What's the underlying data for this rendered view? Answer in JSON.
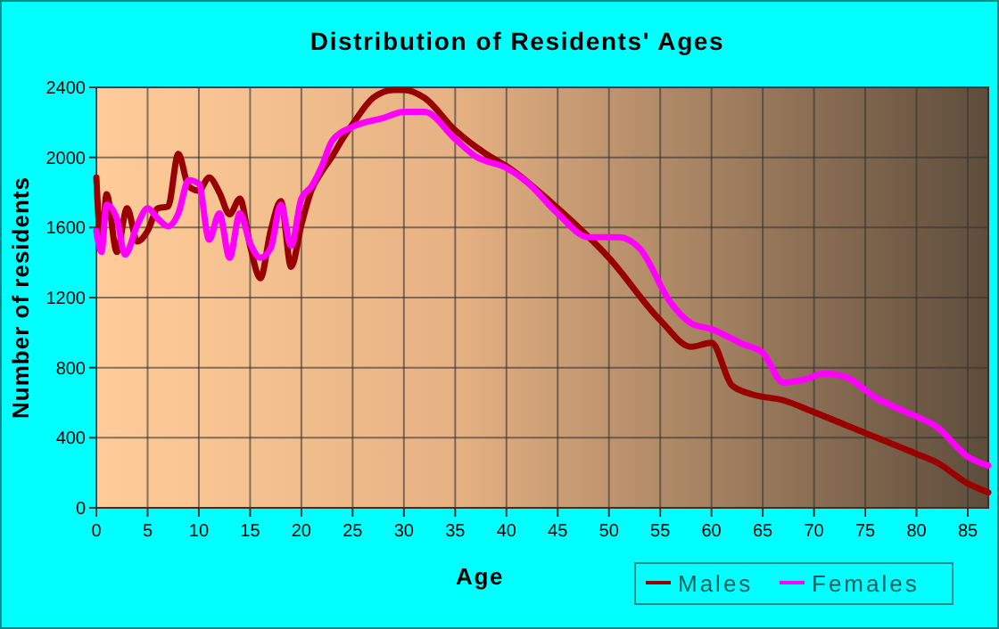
{
  "chart_data": {
    "type": "line",
    "title": "Distribution of Residents' Ages",
    "xlabel": "Age",
    "ylabel": "Number of residents",
    "xlim": [
      0,
      87
    ],
    "xticks": [
      0,
      5,
      10,
      15,
      20,
      25,
      30,
      35,
      40,
      45,
      50,
      55,
      60,
      65,
      70,
      75,
      80,
      85
    ],
    "ylim": [
      0,
      2400
    ],
    "yticks": [
      0,
      400,
      800,
      1200,
      1600,
      2000,
      2400
    ],
    "grid": true,
    "legend": "bottom",
    "marker": "none",
    "line_style": "solid",
    "series": [
      {
        "name": "Males",
        "color": "#990000",
        "x": [
          0,
          0.5,
          1,
          2,
          3,
          4,
          5,
          6,
          7,
          8,
          9,
          10,
          11,
          12,
          13,
          14,
          15,
          16,
          17,
          18,
          19,
          20,
          21,
          22,
          23,
          24,
          25,
          27,
          29,
          30,
          32,
          35,
          38,
          40,
          45,
          50,
          55,
          58,
          60,
          62,
          64,
          67,
          70,
          75,
          80,
          82,
          85,
          87
        ],
        "values": [
          1885,
          1495,
          1790,
          1460,
          1710,
          1520,
          1580,
          1710,
          1720,
          2020,
          1835,
          1810,
          1885,
          1800,
          1675,
          1765,
          1495,
          1310,
          1580,
          1750,
          1375,
          1615,
          1815,
          1920,
          2005,
          2105,
          2190,
          2340,
          2385,
          2385,
          2340,
          2155,
          2020,
          1950,
          1710,
          1427,
          1071,
          919,
          942,
          698,
          647,
          614,
          546,
          427,
          308,
          258,
          139,
          88
        ]
      },
      {
        "name": "Females",
        "color": "#ff00ff",
        "x": [
          0,
          0.5,
          1,
          2,
          2.8,
          4,
          5,
          6,
          7,
          8,
          9,
          10,
          11,
          12,
          13,
          14,
          15,
          16,
          17,
          18,
          19,
          20,
          21,
          22,
          23,
          25,
          28,
          30,
          32,
          35,
          37,
          40,
          42,
          45,
          48,
          51,
          53,
          56,
          58,
          60,
          63,
          65,
          67,
          69,
          71,
          73,
          76,
          79,
          82,
          85,
          87
        ],
        "values": [
          1580,
          1460,
          1730,
          1650,
          1445,
          1615,
          1710,
          1650,
          1607,
          1680,
          1870,
          1850,
          1530,
          1680,
          1427,
          1680,
          1510,
          1427,
          1480,
          1730,
          1495,
          1765,
          1835,
          1950,
          2095,
          2175,
          2225,
          2260,
          2260,
          2105,
          2005,
          1940,
          1860,
          1680,
          1545,
          1545,
          1480,
          1173,
          1054,
          1020,
          936,
          885,
          715,
          732,
          766,
          749,
          630,
          546,
          461,
          292,
          241
        ]
      }
    ]
  }
}
